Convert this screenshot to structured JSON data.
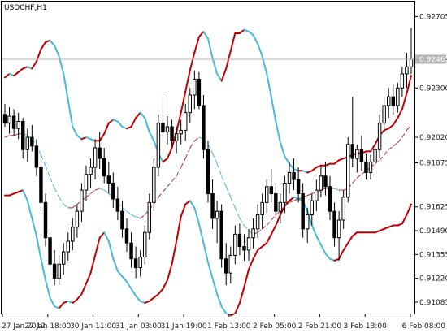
{
  "chart_data": {
    "type": "candlestick",
    "title": "USDCHF,H1",
    "colors": {
      "background": "#ffffff",
      "frame": "#000000",
      "candle": "#000000",
      "band_up": "#c00000",
      "band_down": "#4ab8dc",
      "middle_up": "#b03030",
      "middle_down": "#4ab8dc",
      "price_line": "#b4b4b4",
      "badge": "#b4b4b4"
    },
    "ylim": [
      0.9102,
      0.9279
    ],
    "yticks": [
      "0.92705",
      "0.92455",
      "0.92300",
      "0.92020",
      "0.91875",
      "0.91625",
      "0.91490",
      "0.91355",
      "0.91220",
      "0.91085"
    ],
    "current_price": "0.92463",
    "xticks": [
      "27 Jan 2012",
      "27 Jan 18:00",
      "30 Jan 11:00",
      "31 Jan 03:00",
      "31 Jan 19:00",
      "1 Feb 13:00",
      "2 Feb 05:00",
      "2 Feb 21:00",
      "3 Feb 13:00",
      "6 Feb 08:00"
    ],
    "upper_band": [
      0.9236,
      0.9238,
      0.9237,
      0.9239,
      0.9241,
      0.9242,
      0.9241,
      0.9245,
      0.9252,
      0.9256,
      0.9257,
      0.9254,
      0.9248,
      0.9238,
      0.9223,
      0.9208,
      0.9203,
      0.9201,
      0.9202,
      0.9201,
      0.92,
      0.92,
      0.9204,
      0.921,
      0.9212,
      0.9211,
      0.9208,
      0.9207,
      0.9208,
      0.9213,
      0.9216,
      0.9213,
      0.9205,
      0.92,
      0.9193,
      0.9188,
      0.919,
      0.9196,
      0.9205,
      0.9216,
      0.9228,
      0.924,
      0.925,
      0.9259,
      0.9262,
      0.9258,
      0.9247,
      0.9238,
      0.9234,
      0.9241,
      0.9251,
      0.9261,
      0.9261,
      0.9263,
      0.9262,
      0.926,
      0.9255,
      0.9248,
      0.9238,
      0.9225,
      0.9211,
      0.9199,
      0.9191,
      0.9187,
      0.9184,
      0.9183,
      0.9183,
      0.9182,
      0.9183,
      0.9185,
      0.9186,
      0.9186,
      0.9187,
      0.9187,
      0.9189,
      0.919,
      0.9191,
      0.9192,
      0.9193,
      0.9193,
      0.9194,
      0.9194,
      0.9198,
      0.9203,
      0.9206,
      0.9207,
      0.9209,
      0.9213,
      0.9218,
      0.9227,
      0.9237
    ],
    "middle_band": [
      0.9202,
      0.9203,
      0.9203,
      0.9204,
      0.9204,
      0.9203,
      0.9201,
      0.9198,
      0.9192,
      0.9186,
      0.9179,
      0.9173,
      0.9168,
      0.9164,
      0.9162,
      0.9162,
      0.9164,
      0.9166,
      0.9168,
      0.917,
      0.9172,
      0.9173,
      0.9172,
      0.917,
      0.9168,
      0.9165,
      0.9162,
      0.916,
      0.9158,
      0.9157,
      0.9156,
      0.9158,
      0.9161,
      0.9164,
      0.9168,
      0.9171,
      0.9174,
      0.9177,
      0.918,
      0.9185,
      0.919,
      0.9196,
      0.92,
      0.9202,
      0.9201,
      0.9198,
      0.9193,
      0.9187,
      0.918,
      0.9174,
      0.9168,
      0.9162,
      0.9156,
      0.9152,
      0.9149,
      0.9147,
      0.9148,
      0.915,
      0.9152,
      0.9155,
      0.9158,
      0.916,
      0.9163,
      0.9165,
      0.9166,
      0.9167,
      0.9168,
      0.9169,
      0.917,
      0.9171,
      0.9172,
      0.9173,
      0.9173,
      0.9173,
      0.9172,
      0.9172,
      0.9173,
      0.9176,
      0.9179,
      0.9181,
      0.9183,
      0.9185,
      0.9187,
      0.9189,
      0.9192,
      0.9195,
      0.9197,
      0.9199,
      0.9202,
      0.9206,
      0.9209
    ],
    "lower_band": [
      0.9169,
      0.9169,
      0.917,
      0.9171,
      0.9172,
      0.9166,
      0.9156,
      0.9146,
      0.9133,
      0.9121,
      0.9111,
      0.9106,
      0.9105,
      0.9108,
      0.9109,
      0.9108,
      0.911,
      0.9113,
      0.9119,
      0.9125,
      0.9135,
      0.9145,
      0.9148,
      0.9143,
      0.9133,
      0.9126,
      0.9123,
      0.912,
      0.9116,
      0.9112,
      0.9109,
      0.9108,
      0.9109,
      0.9111,
      0.9113,
      0.9116,
      0.9121,
      0.913,
      0.9143,
      0.9157,
      0.9164,
      0.9166,
      0.9162,
      0.9153,
      0.9142,
      0.9131,
      0.9122,
      0.9113,
      0.9106,
      0.9102,
      0.9101,
      0.9102,
      0.9108,
      0.9117,
      0.9127,
      0.9133,
      0.9138,
      0.914,
      0.9142,
      0.9147,
      0.9152,
      0.9158,
      0.9163,
      0.9166,
      0.9168,
      0.9167,
      0.9166,
      0.916,
      0.9152,
      0.9146,
      0.9141,
      0.9136,
      0.9133,
      0.9132,
      0.9133,
      0.9138,
      0.9142,
      0.9146,
      0.9148,
      0.9148,
      0.9148,
      0.9148,
      0.9148,
      0.9149,
      0.915,
      0.9151,
      0.9152,
      0.9152,
      0.9153,
      0.9158,
      0.9164
    ],
    "candles": [
      [
        0.9215,
        0.9221,
        0.9208,
        0.921
      ],
      [
        0.921,
        0.9219,
        0.9204,
        0.9214
      ],
      [
        0.9214,
        0.9218,
        0.9203,
        0.9207
      ],
      [
        0.9207,
        0.9216,
        0.9201,
        0.9211
      ],
      [
        0.9211,
        0.9213,
        0.919,
        0.9195
      ],
      [
        0.9195,
        0.9207,
        0.9188,
        0.9202
      ],
      [
        0.9202,
        0.9209,
        0.9194,
        0.9197
      ],
      [
        0.9197,
        0.9201,
        0.918,
        0.9185
      ],
      [
        0.9185,
        0.919,
        0.916,
        0.9165
      ],
      [
        0.9165,
        0.917,
        0.914,
        0.9145
      ],
      [
        0.9145,
        0.915,
        0.9125,
        0.913
      ],
      [
        0.913,
        0.9138,
        0.9118,
        0.9122
      ],
      [
        0.9122,
        0.9135,
        0.9118,
        0.913
      ],
      [
        0.913,
        0.9142,
        0.9124,
        0.9137
      ],
      [
        0.9137,
        0.9148,
        0.9132,
        0.9143
      ],
      [
        0.9143,
        0.9156,
        0.9138,
        0.9151
      ],
      [
        0.9151,
        0.9164,
        0.9145,
        0.916
      ],
      [
        0.916,
        0.9176,
        0.9154,
        0.9172
      ],
      [
        0.9172,
        0.9186,
        0.9166,
        0.9181
      ],
      [
        0.9181,
        0.919,
        0.9173,
        0.9185
      ],
      [
        0.9185,
        0.9201,
        0.9178,
        0.9196
      ],
      [
        0.9196,
        0.9205,
        0.9184,
        0.919
      ],
      [
        0.919,
        0.9196,
        0.9176,
        0.918
      ],
      [
        0.918,
        0.9188,
        0.917,
        0.9176
      ],
      [
        0.9176,
        0.9182,
        0.9162,
        0.9167
      ],
      [
        0.9167,
        0.9174,
        0.9155,
        0.916
      ],
      [
        0.916,
        0.9166,
        0.9145,
        0.915
      ],
      [
        0.915,
        0.9156,
        0.9137,
        0.9142
      ],
      [
        0.9142,
        0.9148,
        0.9128,
        0.9133
      ],
      [
        0.9133,
        0.914,
        0.9122,
        0.9128
      ],
      [
        0.9128,
        0.9138,
        0.9123,
        0.9134
      ],
      [
        0.9134,
        0.9152,
        0.913,
        0.9148
      ],
      [
        0.9148,
        0.917,
        0.9144,
        0.9165
      ],
      [
        0.9165,
        0.919,
        0.916,
        0.9185
      ],
      [
        0.9185,
        0.9215,
        0.918,
        0.921
      ],
      [
        0.921,
        0.9225,
        0.9199,
        0.9205
      ],
      [
        0.9205,
        0.9214,
        0.9198,
        0.9208
      ],
      [
        0.9208,
        0.9212,
        0.9197,
        0.92
      ],
      [
        0.92,
        0.9208,
        0.9193,
        0.9204
      ],
      [
        0.9204,
        0.9212,
        0.9198,
        0.9206
      ],
      [
        0.9206,
        0.9221,
        0.92,
        0.9216
      ],
      [
        0.9216,
        0.923,
        0.921,
        0.9226
      ],
      [
        0.9226,
        0.924,
        0.9218,
        0.9235
      ],
      [
        0.9235,
        0.9239,
        0.9218,
        0.922
      ],
      [
        0.922,
        0.9226,
        0.919,
        0.9195
      ],
      [
        0.9195,
        0.92,
        0.9165,
        0.917
      ],
      [
        0.917,
        0.9178,
        0.915,
        0.9156
      ],
      [
        0.9156,
        0.9166,
        0.9142,
        0.916
      ],
      [
        0.916,
        0.9164,
        0.9128,
        0.9133
      ],
      [
        0.9133,
        0.9142,
        0.9118,
        0.9125
      ],
      [
        0.9125,
        0.914,
        0.9119,
        0.9135
      ],
      [
        0.9135,
        0.9152,
        0.913,
        0.9147
      ],
      [
        0.9147,
        0.9153,
        0.9135,
        0.914
      ],
      [
        0.914,
        0.9147,
        0.9132,
        0.9138
      ],
      [
        0.9138,
        0.915,
        0.9132,
        0.9145
      ],
      [
        0.9145,
        0.9156,
        0.9139,
        0.915
      ],
      [
        0.915,
        0.9164,
        0.9145,
        0.9158
      ],
      [
        0.9158,
        0.917,
        0.915,
        0.9165
      ],
      [
        0.9165,
        0.9178,
        0.9159,
        0.9174
      ],
      [
        0.9174,
        0.9184,
        0.9165,
        0.917
      ],
      [
        0.917,
        0.9176,
        0.9156,
        0.916
      ],
      [
        0.916,
        0.917,
        0.9153,
        0.9165
      ],
      [
        0.9165,
        0.918,
        0.9159,
        0.9176
      ],
      [
        0.9176,
        0.9188,
        0.917,
        0.9182
      ],
      [
        0.9182,
        0.919,
        0.9172,
        0.9178
      ],
      [
        0.9178,
        0.9185,
        0.9165,
        0.917
      ],
      [
        0.917,
        0.9176,
        0.9145,
        0.915
      ],
      [
        0.915,
        0.9162,
        0.9142,
        0.9158
      ],
      [
        0.9158,
        0.917,
        0.9152,
        0.9166
      ],
      [
        0.9166,
        0.9178,
        0.916,
        0.9172
      ],
      [
        0.9172,
        0.9185,
        0.9168,
        0.918
      ],
      [
        0.918,
        0.9188,
        0.9169,
        0.9174
      ],
      [
        0.9174,
        0.918,
        0.9155,
        0.916
      ],
      [
        0.916,
        0.9165,
        0.914,
        0.9145
      ],
      [
        0.9145,
        0.916,
        0.9132,
        0.9155
      ],
      [
        0.9155,
        0.9172,
        0.915,
        0.9168
      ],
      [
        0.9168,
        0.9202,
        0.9165,
        0.9198
      ],
      [
        0.9198,
        0.9225,
        0.9185,
        0.919
      ],
      [
        0.919,
        0.9198,
        0.9182,
        0.9195
      ],
      [
        0.9195,
        0.9203,
        0.9183,
        0.9188
      ],
      [
        0.9188,
        0.9193,
        0.9178,
        0.9182
      ],
      [
        0.9182,
        0.9192,
        0.9178,
        0.9188
      ],
      [
        0.9188,
        0.92,
        0.9184,
        0.9195
      ],
      [
        0.9195,
        0.9215,
        0.919,
        0.921
      ],
      [
        0.921,
        0.9225,
        0.9205,
        0.922
      ],
      [
        0.922,
        0.923,
        0.9213,
        0.9225
      ],
      [
        0.9225,
        0.9232,
        0.9215,
        0.922
      ],
      [
        0.922,
        0.9233,
        0.9216,
        0.923
      ],
      [
        0.923,
        0.9242,
        0.9225,
        0.9238
      ],
      [
        0.9238,
        0.925,
        0.923,
        0.9242
      ],
      [
        0.9242,
        0.9264,
        0.9238,
        0.92463
      ]
    ]
  }
}
